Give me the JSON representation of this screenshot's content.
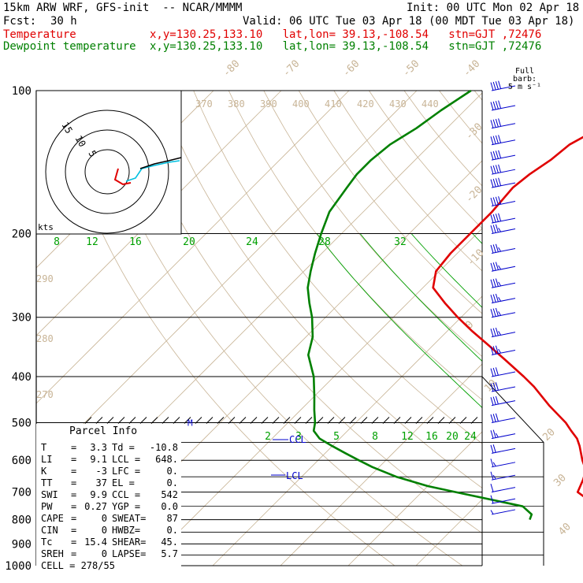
{
  "header": {
    "title": "15km ARW WRF, GFS-init  -- NCAR/MMMM",
    "init": "Init: 00 UTC Mon 02 Apr 18",
    "fcst_label": "Fcst:",
    "fcst_value": "30 h",
    "valid": "Valid: 06 UTC Tue 03 Apr 18 (00 MDT Tue 03 Apr 18)",
    "temp_label": "Temperature",
    "temp_loc": "x,y=130.25,133.10   lat,lon= 39.13,-108.54   stn=GJT ,72476",
    "dew_label": "Dewpoint temperature",
    "dew_loc": "x,y=130.25,133.10   lat,lon= 39.13,-108.54   stn=GJT ,72476"
  },
  "barb_note": {
    "line1": "Full barb:",
    "line2": "5 m s⁻¹"
  },
  "parcel_info": {
    "title": "Parcel Info",
    "rows": [
      {
        "k1": "T",
        "v1": "3.3",
        "k2": "Td =",
        "v2": "-10.8"
      },
      {
        "k1": "LI",
        "v1": "9.1",
        "k2": "LCL =",
        "v2": "648."
      },
      {
        "k1": "K",
        "v1": "-3",
        "k2": "LFC =",
        "v2": "0."
      },
      {
        "k1": "TT",
        "v1": "37",
        "k2": "EL =",
        "v2": "0."
      },
      {
        "k1": "SWI",
        "v1": "9.9",
        "k2": "CCL =",
        "v2": "542"
      },
      {
        "k1": "PW",
        "v1": "0.27",
        "k2": "YGP =",
        "v2": "0.0"
      },
      {
        "k1": "CAPE",
        "v1": "0",
        "k2": "SWEAT=",
        "v2": "87"
      },
      {
        "k1": "CIN",
        "v1": "0",
        "k2": "HWBZ=",
        "v2": "0."
      },
      {
        "k1": "Tc",
        "v1": "15.4",
        "k2": "SHEAR=",
        "v2": "45."
      },
      {
        "k1": "SREH",
        "v1": "0",
        "k2": "LAPSE=",
        "v2": "5.7"
      }
    ],
    "cell": "CELL = 278/55"
  },
  "colors": {
    "temperature": "#e00000",
    "dewpoint": "#008000",
    "isotherm": "#c8b496",
    "dry_adiabat": "#c8b496",
    "moist_adiabat": "#00a000",
    "mixing_ratio": "#00a000",
    "isobar": "#000000",
    "barb": "#0000cc",
    "grid": "#000000"
  },
  "chart_data": {
    "type": "line",
    "title": "15km ARW WRF, GFS-init  -- NCAR/MMMM",
    "xlabel": "",
    "ylabel": "",
    "y_scale": "log-pressure",
    "pressure_levels": [
      100,
      200,
      300,
      400,
      500,
      600,
      700,
      800,
      900,
      1000
    ],
    "pressure_labels": [
      "100",
      "200",
      "300",
      "400",
      "500",
      "600",
      "700",
      "800",
      "900",
      "1000"
    ],
    "isotherm_labels": [
      "-80",
      "-70",
      "-60",
      "-50",
      "-40",
      "-30",
      "-20",
      "-10",
      "0",
      "10",
      "20",
      "30",
      "40"
    ],
    "theta_e_labels": [
      "370",
      "380",
      "390",
      "400",
      "410",
      "420",
      "430",
      "440"
    ],
    "theta_labels": [
      "290",
      "280",
      "270"
    ],
    "mixing_ratio_labels": [
      "2",
      "3",
      "5",
      "8",
      "12",
      "16",
      "20",
      "24"
    ],
    "wet_bulb_labels": [
      "8",
      "12",
      "16",
      "20",
      "24",
      "28",
      "32"
    ],
    "markers": {
      "ccl": "CCL",
      "lcl": "LCL",
      "m": "M"
    },
    "series": [
      {
        "name": "Temperature",
        "pressure": [
          1000,
          800,
          780,
          750,
          700,
          660,
          630,
          600,
          560,
          540,
          520,
          500,
          460,
          420,
          400,
          370,
          340,
          320,
          300,
          280,
          260,
          240,
          220,
          200,
          180,
          160,
          150,
          140,
          130,
          120,
          110,
          100
        ],
        "temp": [
          null,
          4.0,
          1.0,
          -2.0,
          -7.0,
          -8.0,
          -9.0,
          -11.0,
          -13.5,
          -15.0,
          -17.0,
          -19.0,
          -24.0,
          -29.0,
          -32.0,
          -37.0,
          -42.5,
          -46.5,
          -50.5,
          -54.5,
          -58.5,
          -60.5,
          -61.0,
          -61.0,
          -61.0,
          -61.5,
          -61.0,
          -60.0,
          -59.5,
          -57.5,
          -55.0,
          -54.0
        ]
      },
      {
        "name": "Dewpoint temperature",
        "pressure": [
          800,
          780,
          750,
          700,
          680,
          650,
          620,
          600,
          580,
          560,
          540,
          520,
          500,
          470,
          440,
          400,
          360,
          330,
          300,
          280,
          260,
          240,
          220,
          200,
          180,
          160,
          150,
          140,
          130,
          120,
          110,
          100
        ],
        "temp": [
          -10.0,
          -10.5,
          -13.0,
          -25.0,
          -30.0,
          -36.0,
          -41.0,
          -44.0,
          -47.0,
          -50.0,
          -53.0,
          -55.0,
          -56.0,
          -58.0,
          -60.0,
          -63.0,
          -67.0,
          -69.0,
          -72.0,
          -74.5,
          -77.0,
          -79.0,
          -81.0,
          -83.0,
          -85.0,
          -86.0,
          -86.5,
          -86.5,
          -86.0,
          -84.5,
          -83.5,
          -82.0
        ]
      }
    ],
    "wind_profile": {
      "pressure": [
        100,
        110,
        120,
        130,
        140,
        150,
        160,
        175,
        190,
        200,
        220,
        240,
        260,
        280,
        300,
        330,
        360,
        400,
        430,
        460,
        500,
        540,
        580,
        620,
        660,
        700,
        740,
        780
      ],
      "speed_ms": [
        40,
        40,
        40,
        40,
        40,
        40,
        40,
        40,
        40,
        35,
        35,
        35,
        35,
        35,
        35,
        35,
        35,
        30,
        30,
        30,
        30,
        25,
        20,
        15,
        15,
        10,
        10,
        5
      ]
    },
    "hodograph": {
      "ring_labels": [
        "15",
        "10",
        "5"
      ],
      "units": "kts"
    }
  }
}
